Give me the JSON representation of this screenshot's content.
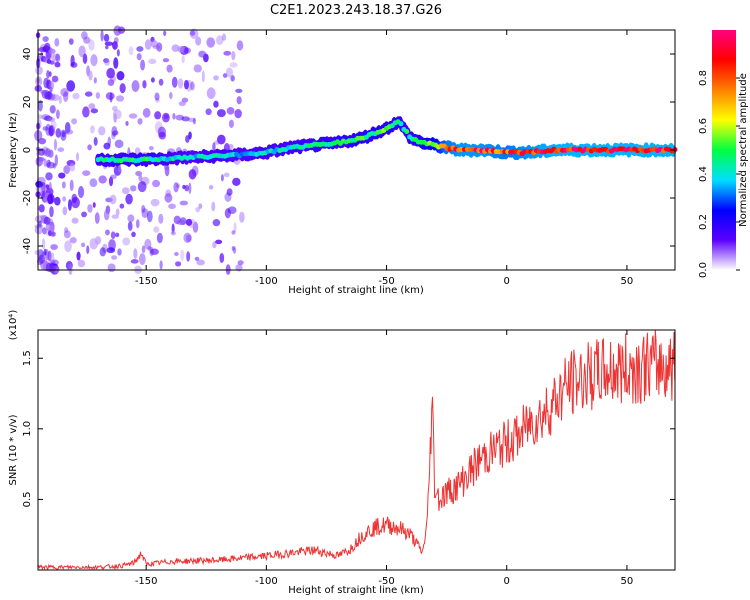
{
  "title": "C2E1.2023.243.18.37.G26",
  "chart_data": [
    {
      "type": "heatmap",
      "title": "C2E1.2023.243.18.37.G26",
      "xlabel": "Height of straight line (km)",
      "ylabel": "Frequency (Hz)",
      "xlim": [
        -195,
        70
      ],
      "ylim": [
        -50,
        50
      ],
      "xticks": [
        -150,
        -100,
        -50,
        0,
        50
      ],
      "yticks": [
        -40,
        -20,
        0,
        20,
        40
      ],
      "colorbar": {
        "label": "Normalized spectral amplitude",
        "range": [
          0,
          1
        ],
        "ticks": [
          "0.0",
          "0.2",
          "0.4",
          "0.6",
          "0.8"
        ],
        "colors": [
          "#ffffff",
          "#5a00ff",
          "#0000ff",
          "#00e0ff",
          "#00ff40",
          "#ffff00",
          "#ff8000",
          "#ff0000",
          "#ff0080"
        ]
      },
      "ridge": {
        "x": [
          -170,
          -160,
          -150,
          -140,
          -130,
          -120,
          -110,
          -100,
          -90,
          -80,
          -70,
          -60,
          -50,
          -45,
          -40,
          -35,
          -30,
          -25,
          -20,
          -10,
          0,
          10,
          20,
          30,
          40,
          50,
          60,
          70
        ],
        "y": [
          -4,
          -4,
          -4,
          -3.5,
          -3,
          -2.5,
          -2,
          -1,
          1,
          2,
          3,
          5,
          9,
          12,
          5,
          3,
          2,
          1,
          0,
          0,
          -1,
          -1,
          0,
          0,
          0,
          0,
          0,
          0
        ],
        "amplitude": [
          0.45,
          0.5,
          0.5,
          0.45,
          0.4,
          0.45,
          0.4,
          0.45,
          0.45,
          0.5,
          0.5,
          0.55,
          0.55,
          0.5,
          0.5,
          0.6,
          0.7,
          0.9,
          0.95,
          0.95,
          0.9,
          0.95,
          1.0,
          1.0,
          1.0,
          1.0,
          1.0,
          1.0
        ]
      },
      "noise_region_x": [
        -195,
        -110
      ]
    },
    {
      "type": "line",
      "xlabel": "Height of straight line (km)",
      "ylabel": "SNR (10 * v/v)",
      "y_multiplier": "(x10⁴)",
      "xlim": [
        -195,
        70
      ],
      "ylim": [
        0,
        1.7
      ],
      "xticks": [
        -150,
        -100,
        -50,
        0,
        50
      ],
      "yticks": [
        "0.5",
        "1.0",
        "1.5"
      ],
      "color": "#ee3333",
      "series": [
        {
          "x": [
            -195,
            -170,
            -160,
            -155,
            -152,
            -150,
            -140,
            -120,
            -100,
            -90,
            -80,
            -70,
            -65,
            -60,
            -55,
            -50,
            -45,
            -40,
            -35,
            -33,
            -31,
            -30,
            -28,
            -25,
            -20,
            -15,
            -10,
            -5,
            0,
            5,
            10,
            15,
            20,
            25,
            30,
            40,
            50,
            60,
            70
          ],
          "y": [
            0.02,
            0.02,
            0.03,
            0.05,
            0.12,
            0.04,
            0.06,
            0.07,
            0.1,
            0.12,
            0.14,
            0.1,
            0.15,
            0.25,
            0.3,
            0.32,
            0.3,
            0.25,
            0.12,
            0.35,
            1.2,
            0.6,
            0.5,
            0.55,
            0.6,
            0.7,
            0.8,
            0.85,
            0.9,
            0.95,
            1.05,
            1.1,
            1.2,
            1.3,
            1.35,
            1.4,
            1.42,
            1.45,
            1.45
          ]
        }
      ]
    }
  ]
}
